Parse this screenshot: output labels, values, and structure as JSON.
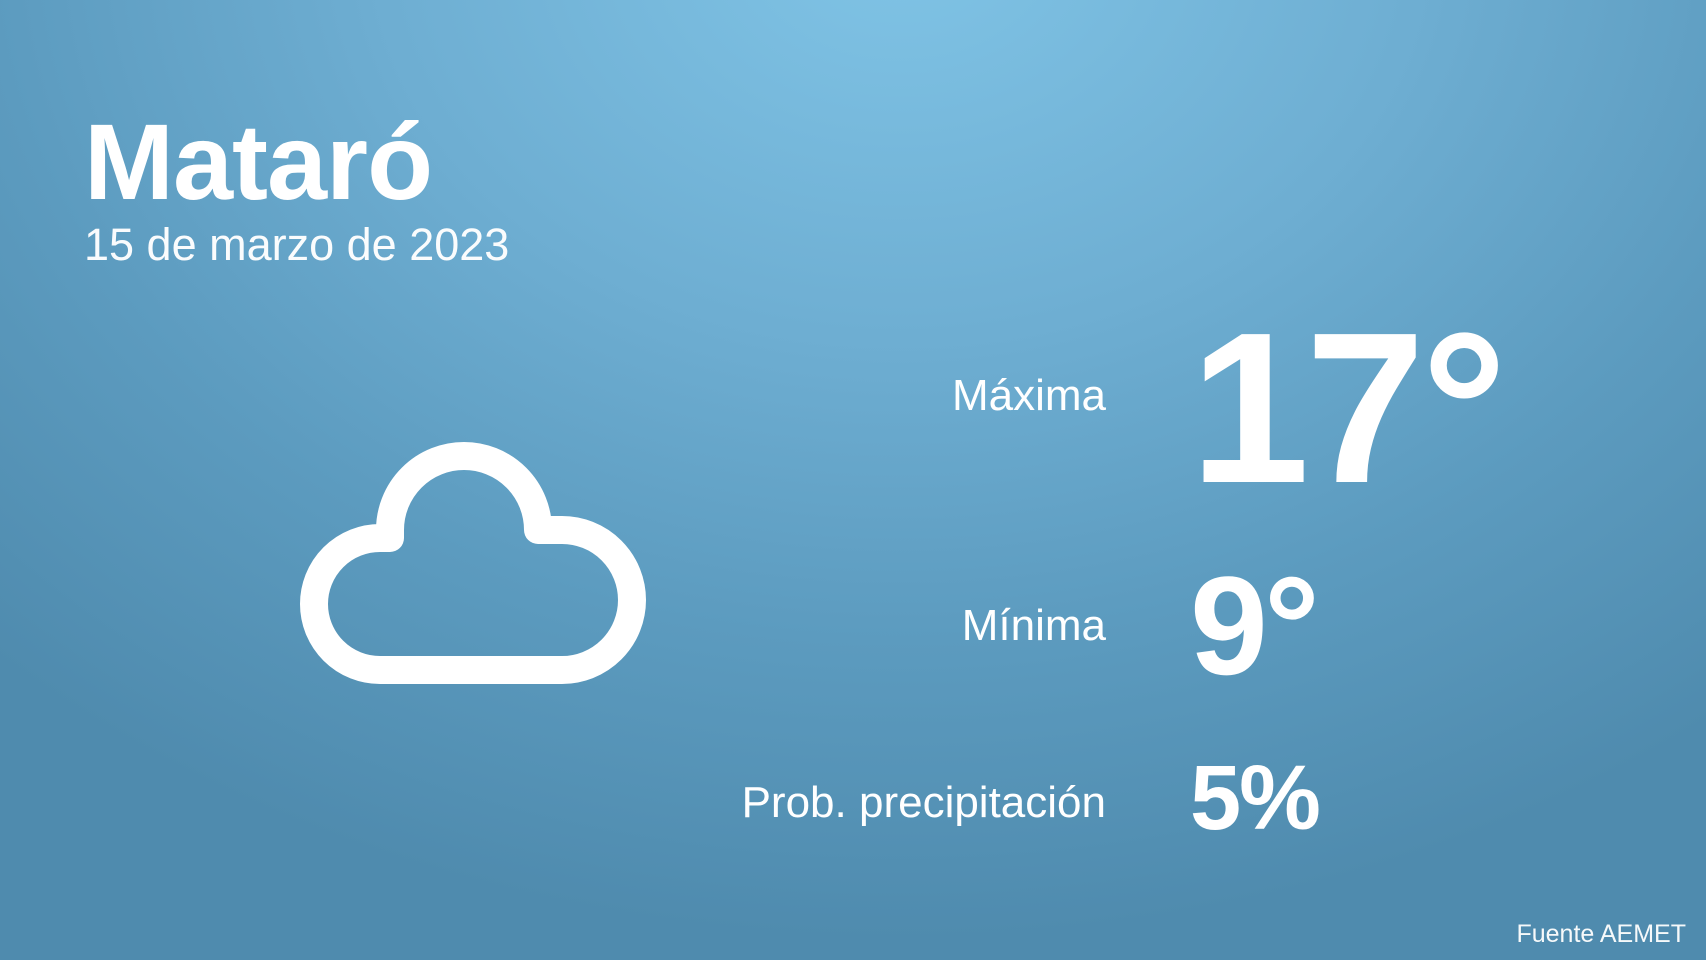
{
  "city": "Mataró",
  "date": "15 de marzo de 2023",
  "weather_icon": "cloud-icon",
  "max": {
    "label": "Máxima",
    "value": "17°"
  },
  "min": {
    "label": "Mínima",
    "value": "9°"
  },
  "precip": {
    "label": "Prob. precipitación",
    "value": "5%"
  },
  "source": "Fuente AEMET"
}
